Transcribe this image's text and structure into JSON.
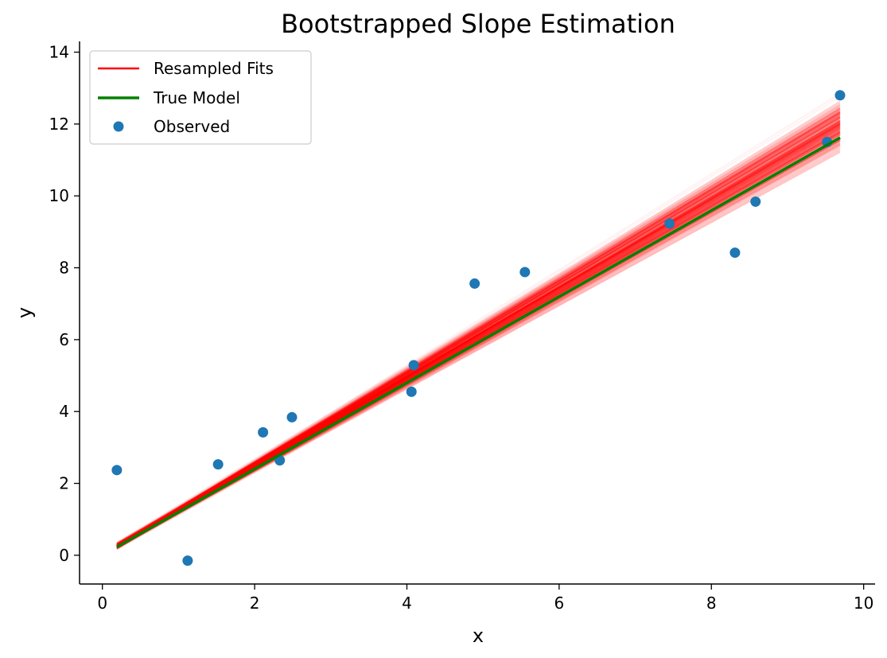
{
  "chart_data": {
    "type": "scatter",
    "title": "Bootstrapped Slope Estimation",
    "xlabel": "x",
    "ylabel": "y",
    "xlim": [
      -0.3,
      10.15
    ],
    "ylim": [
      -0.8,
      14.3
    ],
    "x_ticks": [
      0,
      2,
      4,
      6,
      8,
      10
    ],
    "y_ticks": [
      0,
      2,
      4,
      6,
      8,
      10,
      12,
      14
    ],
    "grid": false,
    "legend_position": "top-left",
    "legend": [
      {
        "label": "Resampled Fits",
        "kind": "line",
        "color": "#ff0000"
      },
      {
        "label": "True Model",
        "kind": "line",
        "color": "#008000"
      },
      {
        "label": "Observed",
        "kind": "marker",
        "color": "#1f77b4"
      }
    ],
    "observed": {
      "name": "Observed",
      "color": "#1f77b4",
      "points": [
        [
          0.19,
          2.37
        ],
        [
          1.12,
          -0.15
        ],
        [
          1.52,
          2.53
        ],
        [
          2.11,
          3.42
        ],
        [
          2.33,
          2.64
        ],
        [
          2.49,
          3.84
        ],
        [
          4.06,
          4.55
        ],
        [
          4.09,
          5.29
        ],
        [
          4.89,
          7.56
        ],
        [
          5.55,
          7.88
        ],
        [
          7.45,
          9.23
        ],
        [
          8.31,
          8.42
        ],
        [
          8.58,
          9.84
        ],
        [
          9.52,
          11.5
        ],
        [
          9.69,
          12.8
        ]
      ]
    },
    "true_model": {
      "name": "True Model",
      "color": "#008000",
      "x": [
        0.19,
        9.69
      ],
      "y": [
        0.23,
        11.62
      ]
    },
    "resampled_fits": {
      "name": "Resampled Fits",
      "color": "#ff0000",
      "x_range": [
        0.19,
        9.69
      ],
      "slope_range": [
        1.08,
        1.38
      ],
      "intercept": 0.02
    }
  }
}
